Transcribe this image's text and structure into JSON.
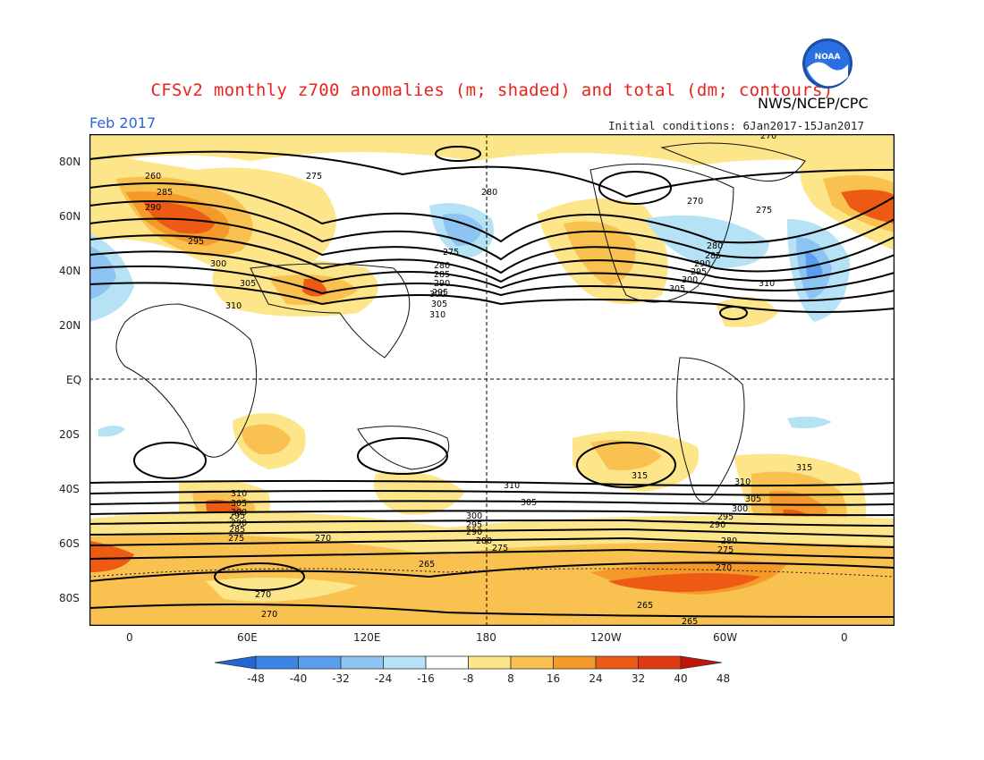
{
  "header": {
    "title": "CFSv2 monthly z700 anomalies (m; shaded) and total (dm; contours)",
    "agency": "NWS/NCEP/CPC",
    "month": "Feb 2017",
    "initial_conditions": "Initial conditions: 6Jan2017-15Jan2017",
    "logo_text": "NOAA"
  },
  "axes": {
    "lat_labels": [
      "80N",
      "60N",
      "40N",
      "20N",
      "EQ",
      "20S",
      "40S",
      "60S",
      "80S"
    ],
    "lon_labels": [
      "0",
      "60E",
      "120E",
      "180",
      "120W",
      "60W",
      "0"
    ]
  },
  "colorbar": {
    "ticks": [
      "-48",
      "-40",
      "-32",
      "-24",
      "-16",
      "-8",
      "8",
      "16",
      "24",
      "32",
      "40",
      "48"
    ],
    "colors": [
      "#2266d8",
      "#3c85e6",
      "#5a9eed",
      "#8dc4f2",
      "#b6e2f5",
      "#ffffff",
      "#fde68a",
      "#f8c150",
      "#f39a2a",
      "#ec5a14",
      "#e23a10",
      "#c01608"
    ]
  },
  "contour_labels": {
    "north": [
      "260",
      "285",
      "290",
      "295",
      "300",
      "305",
      "310",
      "275",
      "280",
      "275",
      "280",
      "285",
      "290",
      "295",
      "300",
      "305",
      "310",
      "270",
      "275",
      "280",
      "285",
      "290",
      "295",
      "300",
      "305",
      "310",
      "270"
    ],
    "south": [
      "310",
      "305",
      "300",
      "295",
      "290",
      "285",
      "275",
      "270",
      "265",
      "270",
      "270",
      "310",
      "305",
      "300",
      "295",
      "290",
      "280",
      "275",
      "315",
      "310",
      "305",
      "300",
      "295",
      "290",
      "280",
      "275",
      "270",
      "265",
      "265",
      "315"
    ]
  }
}
